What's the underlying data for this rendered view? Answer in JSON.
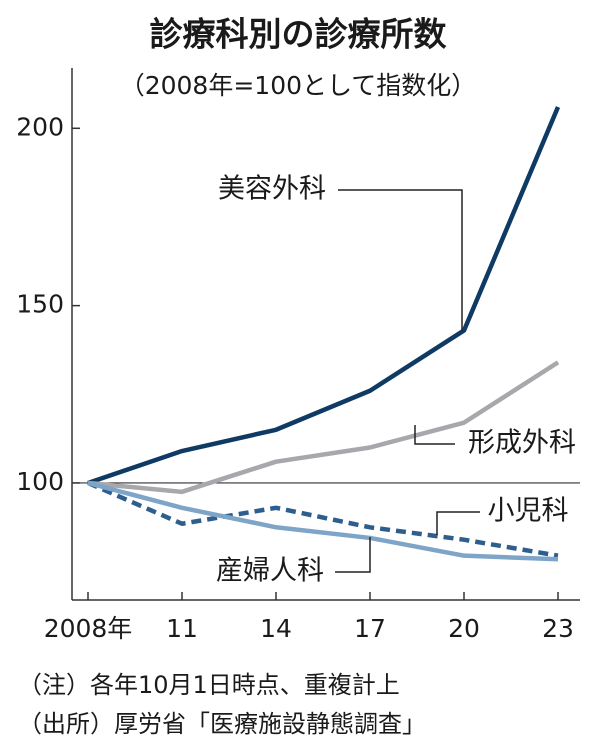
{
  "chart_data": {
    "type": "line",
    "title": "診療科別の診療所数",
    "subtitle": "（2008年=100として指数化）",
    "categories": [
      "2008年",
      "11",
      "14",
      "17",
      "20",
      "23"
    ],
    "series": [
      {
        "name": "美容外科",
        "color": "#0f3a64",
        "dashed": false,
        "values": [
          100,
          109,
          115,
          126,
          143,
          206
        ]
      },
      {
        "name": "形成外科",
        "color": "#a6a8ab",
        "dashed": false,
        "values": [
          100,
          97.5,
          106,
          110,
          117,
          134
        ]
      },
      {
        "name": "小児科",
        "color": "#2d5e8e",
        "dashed": true,
        "values": [
          100,
          88.5,
          93,
          87.5,
          84,
          79.5
        ]
      },
      {
        "name": "産婦人科",
        "color": "#7ea5c8",
        "dashed": false,
        "values": [
          100,
          93,
          87.5,
          84.5,
          79.5,
          78.5
        ]
      }
    ],
    "ylim": [
      67,
      217
    ],
    "yticks": [
      100,
      150,
      200
    ],
    "hline": 100,
    "notes": [
      "（注）各年10月1日時点、重複計上",
      "（出所）厚労省「医療施設静態調査」"
    ]
  }
}
